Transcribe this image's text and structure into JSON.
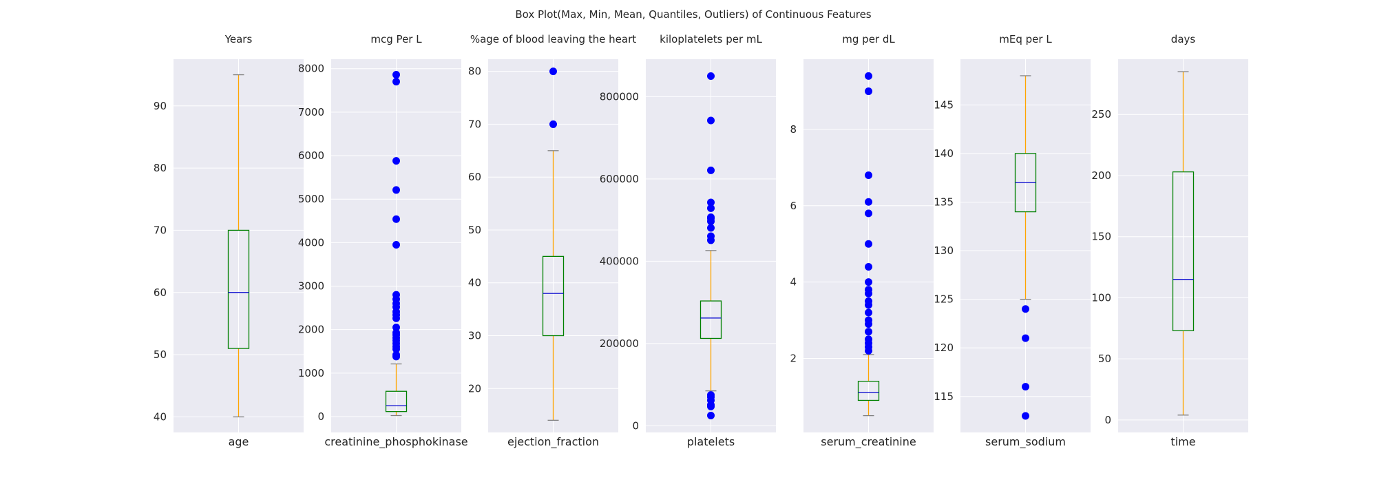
{
  "chart_data": {
    "type": "box",
    "title": "Box Plot(Max, Min, Mean, Quantiles, Outliers) of Continuous Features",
    "colors": {
      "box": "#008000",
      "whisker": "#FFA500",
      "median": "#0000CD",
      "cap": "#808080",
      "outlier": "#0000FF",
      "panel_bg": "#EAEAF2",
      "grid": "#FFFFFF"
    },
    "grid": true,
    "panels": [
      {
        "name": "age",
        "unit": "Years",
        "ylim": [
          37.5,
          97.5
        ],
        "ticks": [
          40,
          50,
          60,
          70,
          80,
          90
        ],
        "tick_labels": [
          "40",
          "50",
          "60",
          "70",
          "80",
          "90"
        ],
        "whisker_low": 40,
        "q1": 51,
        "median": 60,
        "q3": 70,
        "whisker_high": 95,
        "outliers": []
      },
      {
        "name": "creatinine_phosphokinase",
        "unit": "mcg Per L",
        "ylim": [
          -364,
          8217
        ],
        "ticks": [
          0,
          1000,
          2000,
          3000,
          4000,
          5000,
          6000,
          7000,
          8000
        ],
        "tick_labels": [
          "0",
          "1000",
          "2000",
          "3000",
          "4000",
          "5000",
          "6000",
          "7000",
          "8000"
        ],
        "whisker_low": 23,
        "q1": 116,
        "median": 250,
        "q3": 582,
        "whisker_high": 1211,
        "outliers": [
          1380,
          1420,
          1550,
          1610,
          1680,
          1750,
          1810,
          1880,
          1930,
          2050,
          2260,
          2340,
          2410,
          2520,
          2600,
          2700,
          2800,
          3950,
          4540,
          5210,
          5880,
          7700,
          7860
        ]
      },
      {
        "name": "ejection_fraction",
        "unit": "%age of blood leaving the heart",
        "ylim": [
          11.7,
          82.3
        ],
        "ticks": [
          20,
          30,
          40,
          50,
          60,
          70,
          80
        ],
        "tick_labels": [
          "20",
          "30",
          "40",
          "50",
          "60",
          "70",
          "80"
        ],
        "whisker_low": 14,
        "q1": 30,
        "median": 38,
        "q3": 45,
        "whisker_high": 65,
        "outliers": [
          70,
          80
        ]
      },
      {
        "name": "platelets",
        "unit": "kiloplatelets per mL",
        "ylim": [
          -16000,
          891000
        ],
        "ticks": [
          0,
          200000,
          400000,
          600000,
          800000
        ],
        "tick_labels": [
          "0",
          "200000",
          "400000",
          "600000",
          "800000"
        ],
        "whisker_low": 85000,
        "q1": 212500,
        "median": 262000,
        "q3": 303500,
        "whisker_high": 426000,
        "outliers": [
          25100,
          47000,
          51000,
          62000,
          70000,
          75000,
          451000,
          461000,
          481000,
          497000,
          504000,
          507000,
          529000,
          543000,
          621000,
          742000,
          850000
        ]
      },
      {
        "name": "serum_creatinine",
        "unit": "mg per dL",
        "ylim": [
          0.06,
          9.84
        ],
        "ticks": [
          2,
          4,
          6,
          8
        ],
        "tick_labels": [
          "2",
          "4",
          "6",
          "8"
        ],
        "whisker_low": 0.5,
        "q1": 0.9,
        "median": 1.1,
        "q3": 1.4,
        "whisker_high": 2.1,
        "outliers": [
          2.2,
          2.3,
          2.4,
          2.5,
          2.7,
          2.9,
          3.0,
          3.2,
          3.4,
          3.5,
          3.7,
          3.8,
          4.0,
          4.4,
          5.0,
          5.8,
          6.1,
          6.8,
          9.0,
          9.4
        ]
      },
      {
        "name": "serum_sodium",
        "unit": "mEq per L",
        "ylim": [
          111.3,
          149.7
        ],
        "ticks": [
          115,
          120,
          125,
          130,
          135,
          140,
          145
        ],
        "tick_labels": [
          "115",
          "120",
          "125",
          "130",
          "135",
          "140",
          "145"
        ],
        "whisker_low": 125,
        "q1": 134,
        "median": 137,
        "q3": 140,
        "whisker_high": 148,
        "outliers": [
          113,
          116,
          121,
          124
        ]
      },
      {
        "name": "time",
        "unit": "days",
        "ylim": [
          -10.2,
          295.2
        ],
        "ticks": [
          0,
          50,
          100,
          150,
          200,
          250
        ],
        "tick_labels": [
          "0",
          "50",
          "100",
          "150",
          "200",
          "250"
        ],
        "whisker_low": 4,
        "q1": 73,
        "median": 115,
        "q3": 203,
        "whisker_high": 285,
        "outliers": []
      }
    ]
  }
}
